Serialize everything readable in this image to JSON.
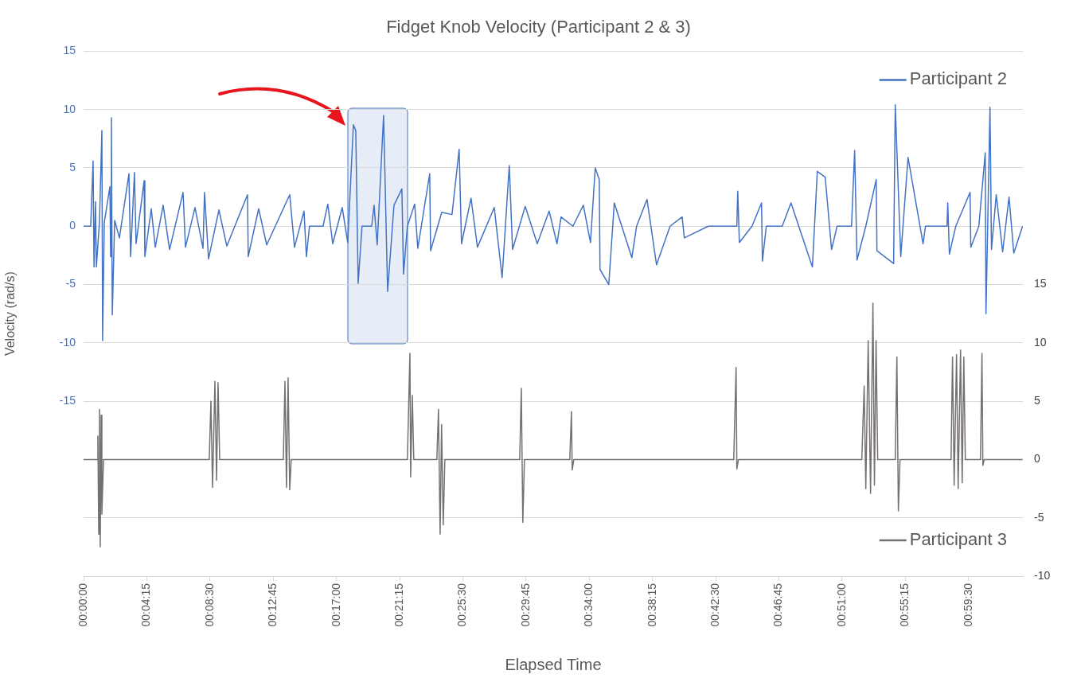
{
  "chart_data": {
    "type": "line",
    "title": "Fidget Knob Velocity (Participant 2 & 3)",
    "xlabel": "Elapsed Time",
    "ylabel": "Velocity (rad/s)",
    "xlim": [
      0,
      63.15
    ],
    "xticks": [
      {
        "value": 0,
        "label": "00:00:00"
      },
      {
        "value": 4.25,
        "label": "00:04:15"
      },
      {
        "value": 8.5,
        "label": "00:08:30"
      },
      {
        "value": 12.75,
        "label": "00:12:45"
      },
      {
        "value": 17,
        "label": "00:17:00"
      },
      {
        "value": 21.25,
        "label": "00:21:15"
      },
      {
        "value": 25.5,
        "label": "00:25:30"
      },
      {
        "value": 29.75,
        "label": "00:29:45"
      },
      {
        "value": 34,
        "label": "00:34:00"
      },
      {
        "value": 38.25,
        "label": "00:38:15"
      },
      {
        "value": 42.5,
        "label": "00:42:30"
      },
      {
        "value": 46.75,
        "label": "00:46:45"
      },
      {
        "value": 51,
        "label": "00:51:00"
      },
      {
        "value": 55.25,
        "label": "00:55:15"
      },
      {
        "value": 59.5,
        "label": "00:59:30"
      }
    ],
    "ylim": [
      -30,
      15
    ],
    "yticks": [
      {
        "value": -30,
        "label": null
      },
      {
        "value": -25,
        "label": null
      },
      {
        "value": -20,
        "label": null
      },
      -15,
      -10,
      -5,
      0,
      5,
      10,
      15
    ],
    "y2lim": [
      -10,
      35
    ],
    "y2ticks": [
      -10,
      -5,
      0,
      5,
      10,
      15
    ],
    "grid": "y",
    "legend": "right",
    "marker": "none",
    "line_style": "solid",
    "series": [
      {
        "name": "Participant 2",
        "color": "#4472c4",
        "axis": "y",
        "x": [
          0,
          0.48,
          0.64,
          0.7,
          0.8,
          0.86,
          1.07,
          1.23,
          1.28,
          1.39,
          1.77,
          1.82,
          1.87,
          1.93,
          2.09,
          2.41,
          3.05,
          3.16,
          3.42,
          3.53,
          4.07,
          4.12,
          4.55,
          4.82,
          5.35,
          5.78,
          6.69,
          6.85,
          7.49,
          8.03,
          8.13,
          8.4,
          9.1,
          9.63,
          11.02,
          11.07,
          11.77,
          12.31,
          13.86,
          14.18,
          14.82,
          14.98,
          15.19,
          16.1,
          16.42,
          16.75,
          17.39,
          17.76,
          18.14,
          18.3,
          18.46,
          18.72,
          19.37,
          19.53,
          19.74,
          20.17,
          20.44,
          20.87,
          21.4,
          21.51,
          21.77,
          22.26,
          22.47,
          23.27,
          23.33,
          24.08,
          24.77,
          25.25,
          25.41,
          26.05,
          26.48,
          27.61,
          28.14,
          28.62,
          28.84,
          29.69,
          30.5,
          31.3,
          31.83,
          32.1,
          32.9,
          33.6,
          34.08,
          34.4,
          34.67,
          34.72,
          35.31,
          35.68,
          36.86,
          37.18,
          37.88,
          38.52,
          39.43,
          40.24,
          40.39,
          42,
          43.92,
          43.98,
          44.09,
          44.94,
          45.58,
          45.64,
          45.9,
          46.97,
          47.56,
          49,
          49.33,
          49.86,
          50.29,
          50.66,
          51.63,
          51.84,
          52,
          52.59,
          53.29,
          53.34,
          54.46,
          54.57,
          54.94,
          55.43,
          56.44,
          56.6,
          58.05,
          58.1,
          58.21,
          58.64,
          59.6,
          59.65,
          60.19,
          60.62,
          60.67,
          60.94,
          61.04,
          61.36,
          61.79,
          62.22,
          62.54,
          63.13
        ],
        "values": [
          0,
          0,
          5.6,
          -3.5,
          2.1,
          -3.5,
          0.4,
          8.2,
          -9.8,
          0.3,
          3.4,
          -2.6,
          9.3,
          -7.6,
          0.5,
          -1,
          4.5,
          -2.6,
          4.6,
          -1.5,
          3.9,
          -2.6,
          1.5,
          -1.8,
          1.8,
          -2,
          2.9,
          -1.8,
          1.6,
          -1.9,
          2.9,
          -2.8,
          1.4,
          -1.7,
          2.7,
          -2.6,
          1.5,
          -1.6,
          2.7,
          -1.8,
          1.3,
          -2.6,
          0,
          0,
          1.9,
          -1.5,
          1.6,
          -1.4,
          8.7,
          8.2,
          -4.9,
          0,
          0,
          1.8,
          -1.6,
          9.5,
          -5.6,
          1.8,
          3.2,
          -4.1,
          0,
          1.9,
          -1.9,
          4.5,
          -2.1,
          1.2,
          1,
          6.6,
          -1.5,
          2.4,
          -1.8,
          1.6,
          -4.4,
          5.2,
          -2,
          1.7,
          -1.5,
          1.3,
          -1.5,
          0.8,
          0,
          1.8,
          -1.4,
          5,
          4,
          -3.7,
          -5,
          2,
          -2.7,
          0,
          2.3,
          -3.3,
          0,
          0.8,
          -1,
          0,
          0,
          3,
          -1.4,
          0,
          2,
          -3,
          0,
          0,
          2,
          -3.5,
          4.7,
          4.2,
          -2,
          0,
          0,
          6.5,
          -2.9,
          0,
          4,
          -2.1,
          -3.2,
          10.4,
          -2.6,
          5.9,
          -1.5,
          0,
          0,
          2,
          -2.4,
          0,
          2.9,
          -1.8,
          0,
          6.3,
          -7.5,
          10.2,
          -2,
          2.7,
          -2.2,
          2.5,
          -2.3,
          0
        ]
      },
      {
        "name": "Participant 3",
        "color": "#767171",
        "axis": "y2",
        "x": [
          0,
          0.91,
          0.96,
          1.02,
          1.07,
          1.12,
          1.18,
          1.23,
          1.34,
          8.45,
          8.56,
          8.67,
          8.83,
          8.94,
          9.04,
          9.15,
          13.43,
          13.54,
          13.64,
          13.75,
          13.86,
          13.96,
          21.77,
          21.94,
          21.99,
          22.1,
          22.2,
          23.75,
          23.86,
          23.97,
          24.07,
          24.18,
          24.29,
          29.32,
          29.43,
          29.53,
          29.64,
          32.69,
          32.8,
          32.85,
          32.96,
          43.71,
          43.87,
          43.92,
          44.03,
          52.32,
          52.48,
          52.59,
          52.75,
          52.91,
          53.07,
          53.17,
          53.28,
          53.39,
          54.57,
          54.68,
          54.78,
          54.89,
          58.32,
          58.42,
          58.53,
          58.69,
          58.8,
          58.96,
          59.07,
          59.18,
          59.28,
          60.3,
          60.4,
          60.46,
          60.56,
          63.13
        ],
        "values": [
          0,
          0,
          2,
          -6.4,
          4.3,
          -7.5,
          3.8,
          -4.7,
          0,
          0,
          5,
          -2.4,
          6.7,
          -1.8,
          6.6,
          0,
          0,
          6.7,
          -2.4,
          7,
          -2.6,
          0,
          0,
          9.1,
          -1.5,
          5.5,
          0,
          0,
          4.3,
          -6.4,
          3,
          -5.6,
          0,
          0,
          6.1,
          -5.4,
          0,
          0,
          4.1,
          -0.9,
          0,
          0,
          7.9,
          -0.8,
          0,
          0,
          6.3,
          -2.5,
          10.2,
          -2.9,
          13.4,
          -2.2,
          10.2,
          0,
          0,
          8.8,
          -4.4,
          0,
          0,
          8.8,
          -2.2,
          9,
          -2.5,
          9.4,
          -2,
          8.8,
          0,
          0,
          9.1,
          -0.5,
          0,
          0
        ]
      }
    ]
  }
}
